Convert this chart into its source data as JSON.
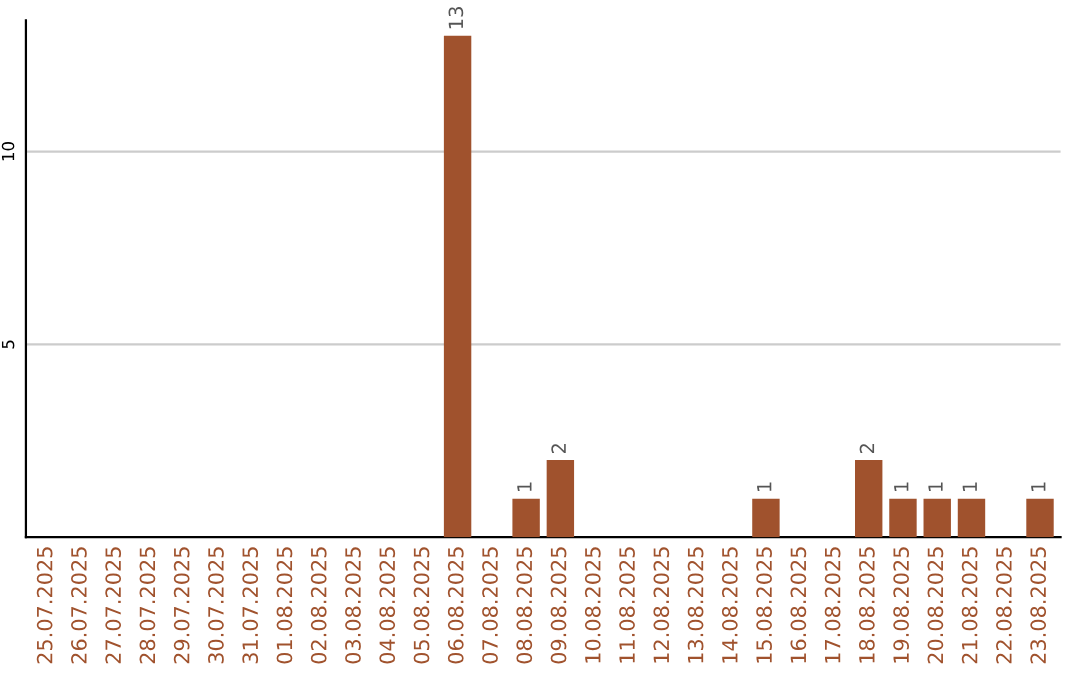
{
  "chart_data": {
    "type": "bar",
    "categories": [
      "25.07.2025",
      "26.07.2025",
      "27.07.2025",
      "28.07.2025",
      "29.07.2025",
      "30.07.2025",
      "31.07.2025",
      "01.08.2025",
      "02.08.2025",
      "03.08.2025",
      "04.08.2025",
      "05.08.2025",
      "06.08.2025",
      "07.08.2025",
      "08.08.2025",
      "09.08.2025",
      "10.08.2025",
      "11.08.2025",
      "12.08.2025",
      "13.08.2025",
      "14.08.2025",
      "15.08.2025",
      "16.08.2025",
      "17.08.2025",
      "18.08.2025",
      "19.08.2025",
      "20.08.2025",
      "21.08.2025",
      "22.08.2025",
      "23.08.2025"
    ],
    "values": [
      0,
      0,
      0,
      0,
      0,
      0,
      0,
      0,
      0,
      0,
      0,
      0,
      13,
      0,
      1,
      2,
      0,
      0,
      0,
      0,
      0,
      1,
      0,
      0,
      2,
      1,
      1,
      1,
      0,
      1
    ],
    "value_labels": [
      null,
      null,
      null,
      null,
      null,
      null,
      null,
      null,
      null,
      null,
      null,
      null,
      "13",
      null,
      "1",
      "2",
      null,
      null,
      null,
      null,
      null,
      "1",
      null,
      null,
      "2",
      "1",
      "1",
      "1",
      null,
      "1"
    ],
    "color": "#a0522d",
    "ylim": [
      0,
      13.4
    ],
    "yticks": [
      5,
      10
    ],
    "grid": "y"
  }
}
